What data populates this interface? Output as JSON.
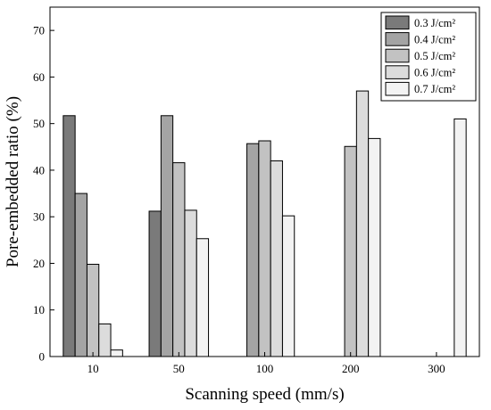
{
  "chart_data": {
    "type": "bar",
    "title": "",
    "xlabel": "Scanning speed (mm/s)",
    "ylabel": "Pore-embedded ratio (%)",
    "categories": [
      "10",
      "50",
      "100",
      "200",
      "300"
    ],
    "ylim": [
      0,
      75
    ],
    "yticks": [
      0,
      10,
      20,
      30,
      40,
      50,
      60,
      70
    ],
    "grid": false,
    "legend_position": "top-right",
    "series": [
      {
        "name": "0.3 J/cm²",
        "color": "#7a7a7a",
        "values": [
          51.7,
          31.2,
          null,
          null,
          null
        ]
      },
      {
        "name": "0.4 J/cm²",
        "color": "#a4a4a4",
        "values": [
          35.0,
          51.7,
          45.7,
          null,
          null
        ]
      },
      {
        "name": "0.5 J/cm²",
        "color": "#c2c2c2",
        "values": [
          19.8,
          41.6,
          46.3,
          45.1,
          null
        ]
      },
      {
        "name": "0.6 J/cm²",
        "color": "#dcdcdc",
        "values": [
          7.0,
          31.4,
          42.0,
          57.0,
          null
        ]
      },
      {
        "name": "0.7 J/cm²",
        "color": "#f3f3f3",
        "values": [
          1.4,
          25.3,
          30.2,
          46.8,
          51.0
        ]
      }
    ]
  }
}
